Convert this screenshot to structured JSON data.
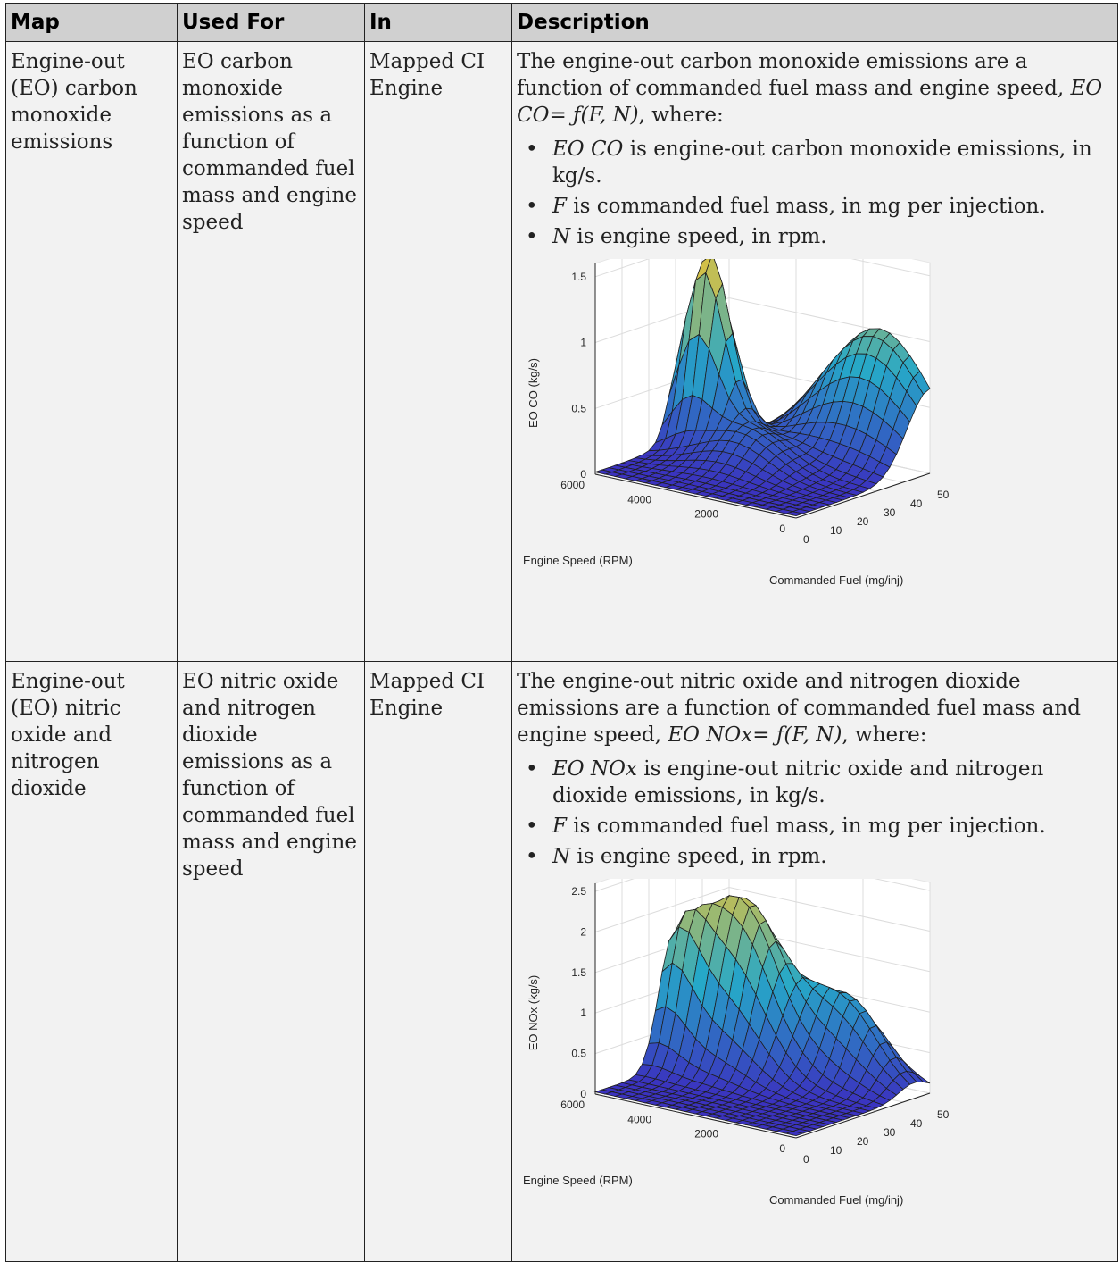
{
  "table": {
    "headers": [
      "Map",
      "Used For",
      "In",
      "Description"
    ],
    "rows": [
      {
        "map": "Engine-out (EO) carbon monoxide emissions",
        "used_for": "EO carbon monoxide emissions as a function of commanded fuel mass and engine speed",
        "in": "Mapped CI Engine",
        "desc_intro": "The engine-out carbon monoxide emissions are a function of commanded fuel mass and engine speed, ",
        "desc_eq": "EO CO= ƒ(F, N)",
        "desc_suffix": ", where:",
        "bullets": [
          {
            "sym": "EO CO",
            "text": " is engine-out carbon monoxide emissions, in kg/s."
          },
          {
            "sym": "F",
            "text": " is commanded fuel mass, in mg per injection."
          },
          {
            "sym": "N",
            "text": " is engine speed, in rpm."
          }
        ]
      },
      {
        "map": "Engine-out (EO) nitric oxide and nitrogen dioxide",
        "used_for": "EO nitric oxide and nitrogen dioxide emissions as a function of commanded fuel mass and engine speed",
        "in": "Mapped CI Engine",
        "desc_intro": "The engine-out nitric oxide and nitrogen dioxide emissions are a function of commanded fuel mass and engine speed, ",
        "desc_eq": "EO NOx= ƒ(F, N)",
        "desc_suffix": ", where:",
        "bullets": [
          {
            "sym": "EO NOx",
            "text": " is engine-out nitric oxide and nitrogen dioxide emissions, in kg/s."
          },
          {
            "sym": "F",
            "text": " is commanded fuel mass, in mg per injection."
          },
          {
            "sym": "N",
            "text": " is engine speed, in rpm."
          }
        ]
      }
    ]
  },
  "bullet_char": "•",
  "colors": {
    "low": "#3b2fbf",
    "mid": "#26a8c8",
    "high": "#f2c531"
  },
  "chart_data": [
    {
      "type": "surface",
      "title": "",
      "xlabel": "Commanded Fuel (mg/inj)",
      "ylabel": "Engine Speed (RPM)",
      "zlabel": "EO CO (kg/s)",
      "z_exponent": "×10⁻⁶",
      "x_ticks": [
        "0",
        "10",
        "20",
        "30",
        "40",
        "50"
      ],
      "y_ticks": [
        "0",
        "2000",
        "4000",
        "6000"
      ],
      "z_ticks": [
        "0",
        "0.5",
        "1",
        "1.5"
      ],
      "xlim": [
        0,
        50
      ],
      "ylim": [
        0,
        6000
      ],
      "zlim": [
        0,
        1.6
      ],
      "peaks": [
        {
          "x": 32,
          "y": 5200,
          "z": 1.45,
          "sx": 6,
          "sy": 900
        },
        {
          "x": 50,
          "y": 1500,
          "z": 1.0,
          "sx": 12,
          "sy": 2200
        },
        {
          "x": 25,
          "y": 3500,
          "z": 0.3,
          "sx": 10,
          "sy": 1500
        }
      ]
    },
    {
      "type": "surface",
      "title": "",
      "xlabel": "Commanded Fuel (mg/inj)",
      "ylabel": "Engine Speed (RPM)",
      "zlabel": "EO NOx (kg/s)",
      "z_exponent": "×10⁻⁴",
      "x_ticks": [
        "0",
        "10",
        "20",
        "30",
        "40",
        "50"
      ],
      "y_ticks": [
        "0",
        "2000",
        "4000",
        "6000"
      ],
      "z_ticks": [
        "0",
        "0.5",
        "1",
        "1.5",
        "2",
        "2.5"
      ],
      "xlim": [
        0,
        50
      ],
      "ylim": [
        0,
        6000
      ],
      "zlim": [
        0,
        2.6
      ],
      "peaks": [
        {
          "x": 36,
          "y": 4500,
          "z": 2.1,
          "sx": 10,
          "sy": 1600
        },
        {
          "x": 28,
          "y": 5800,
          "z": 1.2,
          "sx": 7,
          "sy": 900
        },
        {
          "x": 44,
          "y": 2000,
          "z": 1.0,
          "sx": 8,
          "sy": 1500
        }
      ]
    }
  ]
}
